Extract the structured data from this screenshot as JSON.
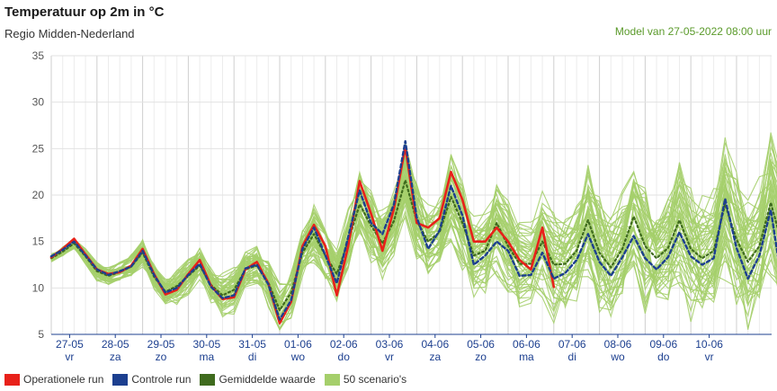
{
  "header": {
    "title": "Temperatuur op 2m in °C",
    "subtitle": "Regio Midden-Nederland",
    "model": "Model van 27-05-2022 08:00 uur"
  },
  "legend": [
    {
      "label": "Operationele run",
      "color": "#e8211a"
    },
    {
      "label": "Controle run",
      "color": "#1c3f8f"
    },
    {
      "label": "Gemiddelde waarde",
      "color": "#3f6b1e"
    },
    {
      "label": "50 scenario's",
      "color": "#a5cf6b"
    }
  ],
  "chart_data": {
    "type": "line",
    "ylim": [
      5,
      35
    ],
    "yticks": [
      5,
      10,
      15,
      20,
      25,
      30,
      35
    ],
    "x_start": "27-05 00:00",
    "x_end": "10-06 18:00",
    "x_step_hours": 6,
    "date_labels": [
      "27-05",
      "28-05",
      "29-05",
      "30-05",
      "31-05",
      "01-06",
      "02-06",
      "03-06",
      "04-06",
      "05-06",
      "06-06",
      "07-06",
      "08-06",
      "09-06",
      "10-06"
    ],
    "day_labels": [
      "vr",
      "za",
      "zo",
      "ma",
      "di",
      "wo",
      "do",
      "vr",
      "za",
      "zo",
      "ma",
      "di",
      "wo",
      "do",
      "vr"
    ],
    "grid": true,
    "series": [
      {
        "name": "Operationele run",
        "color": "#e8211a",
        "values": [
          13.3,
          14.2,
          15.3,
          13.6,
          12.0,
          11.5,
          11.7,
          12.4,
          14.2,
          11.5,
          9.3,
          9.8,
          11.5,
          13.0,
          10.2,
          8.8,
          9.0,
          12.0,
          12.8,
          10.5,
          6.2,
          8.5,
          14.5,
          16.8,
          14.5,
          9.2,
          14.5,
          21.5,
          18.0,
          14.0,
          18.5,
          25.2,
          17.0,
          16.5,
          17.5,
          22.5,
          19.5,
          15.0,
          15.0,
          16.5,
          15.0,
          13.0,
          12.0,
          16.5,
          10.1
        ]
      },
      {
        "name": "Controle run",
        "color": "#1c3f8f",
        "values": [
          13.4,
          14.1,
          15.0,
          13.5,
          12.0,
          11.4,
          11.8,
          12.3,
          14.0,
          11.4,
          9.5,
          10.0,
          11.4,
          12.6,
          10.1,
          8.9,
          9.2,
          12.1,
          12.5,
          10.4,
          6.6,
          8.7,
          14.2,
          16.5,
          13.5,
          10.5,
          15.5,
          20.5,
          17.0,
          15.8,
          19.0,
          25.8,
          17.6,
          14.2,
          16.2,
          21.0,
          17.8,
          12.5,
          13.5,
          15.0,
          14.0,
          11.3,
          11.4,
          13.8,
          11.0,
          11.6,
          13.0,
          15.8,
          12.8,
          11.3,
          13.3,
          15.6,
          13.2,
          12.0,
          13.3,
          16.0,
          13.4,
          12.5,
          13.2,
          19.6,
          14.3,
          11.0,
          13.5,
          18.4,
          10.4
        ]
      },
      {
        "name": "Gemiddelde waarde",
        "color": "#3f6b1e",
        "values": [
          13.2,
          13.9,
          14.8,
          13.4,
          11.8,
          11.3,
          11.7,
          12.3,
          13.8,
          11.2,
          9.6,
          10.2,
          11.3,
          12.4,
          10.3,
          9.2,
          9.8,
          12.0,
          12.4,
          10.6,
          7.6,
          9.5,
          13.8,
          15.8,
          13.5,
          11.5,
          15.0,
          19.0,
          16.7,
          14.8,
          17.2,
          21.6,
          17.2,
          15.0,
          16.0,
          19.8,
          17.0,
          13.5,
          14.0,
          17.0,
          14.5,
          12.6,
          12.6,
          15.0,
          12.5,
          12.6,
          14.0,
          17.3,
          13.8,
          12.2,
          14.2,
          17.7,
          14.5,
          13.2,
          14.3,
          17.3,
          14.2,
          13.2,
          14.0,
          19.0,
          15.2,
          12.8,
          14.5,
          19.2,
          14.6
        ]
      }
    ]
  }
}
